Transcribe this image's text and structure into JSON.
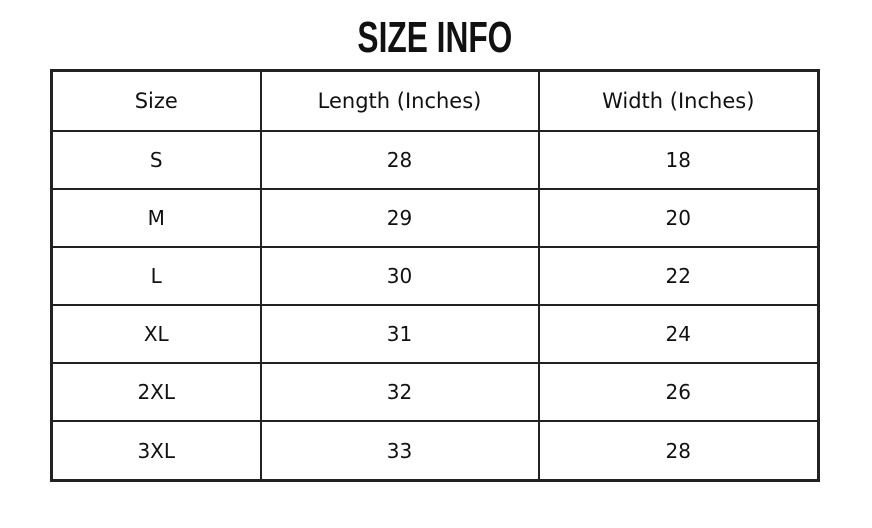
{
  "title": "SIZE INFO",
  "table": {
    "headers": [
      "Size",
      "Length (Inches)",
      "Width (Inches)"
    ],
    "rows": [
      [
        "S",
        "28",
        "18"
      ],
      [
        "M",
        "29",
        "20"
      ],
      [
        "L",
        "30",
        "22"
      ],
      [
        "XL",
        "31",
        "24"
      ],
      [
        "2XL",
        "32",
        "26"
      ],
      [
        "3XL",
        "33",
        "28"
      ]
    ]
  }
}
